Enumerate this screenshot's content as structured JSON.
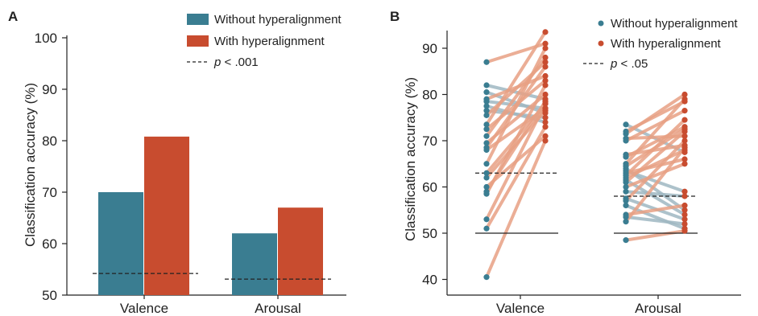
{
  "colors": {
    "without": "#3a7d91",
    "with": "#c84c2f",
    "with_line": "#e8a184",
    "without_line": "#9fb8c2"
  },
  "chart_data": [
    {
      "panel": "A",
      "type": "bar",
      "ylabel": "Classification accuracy (%)",
      "ylim": [
        50,
        100
      ],
      "yticks": [
        50,
        60,
        70,
        80,
        90,
        100
      ],
      "categories": [
        "Valence",
        "Arousal"
      ],
      "series": [
        {
          "name": "Without hyperalignment",
          "color": "#3a7d91",
          "values": [
            70,
            62
          ]
        },
        {
          "name": "With hyperalignment",
          "color": "#c84c2f",
          "values": [
            80.8,
            67
          ]
        }
      ],
      "chance": [
        54.2,
        53.1
      ],
      "chance_label": {
        "italic": "p",
        "rest": " < .001"
      }
    },
    {
      "panel": "B",
      "type": "scatter",
      "ylabel": "Classification accuracy (%)",
      "ylim": [
        38,
        95
      ],
      "yticks": [
        40,
        50,
        60,
        70,
        80,
        90
      ],
      "categories": [
        "Valence",
        "Arousal"
      ],
      "legend": [
        "Without hyperalignment",
        "With hyperalignment"
      ],
      "chance_label": {
        "italic": "p",
        "rest": " < .05"
      },
      "chance": [
        63,
        58
      ],
      "baseline": [
        50,
        50
      ],
      "pairs": [
        [
          [
            87,
            91
          ],
          [
            82,
            79
          ],
          [
            80.5,
            76
          ],
          [
            79,
            84
          ],
          [
            78.5,
            77
          ],
          [
            77.5,
            74
          ],
          [
            76.5,
            75
          ],
          [
            75.5,
            87
          ],
          [
            73.5,
            93.5
          ],
          [
            72.5,
            83
          ],
          [
            71,
            88
          ],
          [
            69.5,
            80
          ],
          [
            68.5,
            86
          ],
          [
            68,
            77
          ],
          [
            65,
            90
          ],
          [
            63,
            78
          ],
          [
            62,
            76.5
          ],
          [
            60,
            71
          ],
          [
            59,
            78.5
          ],
          [
            58.5,
            82
          ],
          [
            53,
            78
          ],
          [
            51,
            73
          ],
          [
            40.5,
            70
          ]
        ],
        [
          [
            73.5,
            67.5
          ],
          [
            72,
            78.5
          ],
          [
            71.5,
            80
          ],
          [
            70.5,
            71
          ],
          [
            70,
            76.5
          ],
          [
            67,
            69
          ],
          [
            66.5,
            73
          ],
          [
            65,
            79
          ],
          [
            64.5,
            72.5
          ],
          [
            64,
            55
          ],
          [
            63.5,
            59
          ],
          [
            63,
            66
          ],
          [
            62.5,
            74.5
          ],
          [
            62,
            68
          ],
          [
            61.5,
            54
          ],
          [
            61,
            72
          ],
          [
            60,
            65
          ],
          [
            59,
            58
          ],
          [
            57.5,
            53
          ],
          [
            57,
            70
          ],
          [
            56,
            51
          ],
          [
            54,
            56
          ],
          [
            53.5,
            52
          ],
          [
            52.5,
            68.5
          ],
          [
            48.5,
            50.5
          ]
        ]
      ]
    }
  ]
}
